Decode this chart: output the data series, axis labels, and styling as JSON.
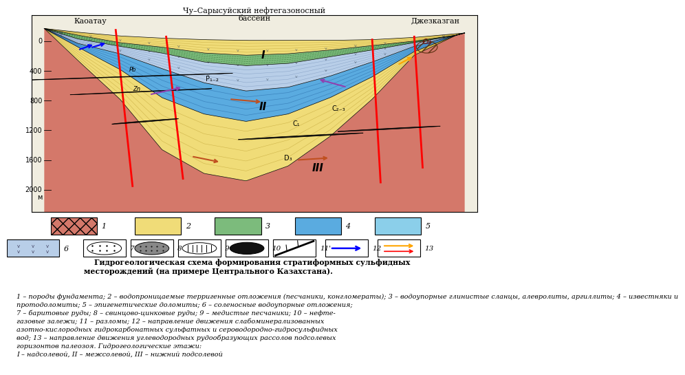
{
  "title_left": "Каоатау",
  "title_center": "Чу–Сарысуйский нефтегазоносный\nбассейн",
  "title_right": "Джезказган",
  "depth_values": [
    0,
    400,
    800,
    1200,
    1600,
    2000
  ],
  "bg_color": "#ffffff",
  "color_basement": "#d4786a",
  "color_yellow": "#f0dc78",
  "color_green": "#7cbb7c",
  "color_blue_dark": "#5aabe0",
  "color_salt": "#b8cee8",
  "caption_title": "    Гидрогеологическая схема формирования стратиформных сульфидных\nместорождений (на примере Центрального Казахстана).",
  "caption_body": "1 – породы фундамента; 2 – водопроницаемые терригенные отложения (песчаники, конгломераты); 3 – водоупорные глинистые сланцы, алевролиты, аргиллиты; 4 – известняки и\nпротодоломиты; 5 – эпигенетические доломиты; 6 – соленосные водоупорные отложения;\n7 – баритовые руды; 8 – свинцово-цинковые руды; 9 – медистые песчаники; 10 – нефте-\nгазовые залежи; 11 – разломы; 12 – направление движения слабоминерализованных\nазотно-кислородных гидрокарбонатных сульфатных и сероводородно-гидросульфидных\nвод; 13 – направление движения углеводородных рудообразующих рассолов подсолевых\nгоризонтов палеозоя. Гидрогеологические этажи:\nI – надсолевой, II – межсолевой, III – нижний подсолевой"
}
